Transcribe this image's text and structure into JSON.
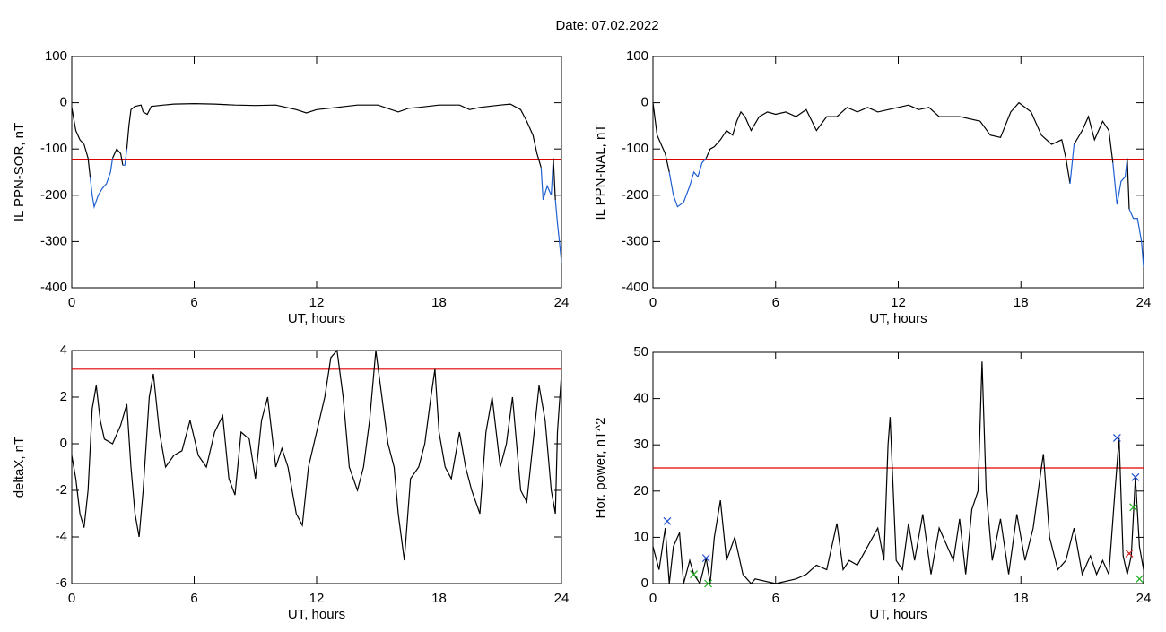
{
  "title": "Date:  07.02.2022",
  "chart_data": [
    {
      "type": "line",
      "ylabel": "IL PPN-SOR, nT",
      "xlabel": "UT, hours",
      "color": "#000000",
      "highlight_color": "#1f5fd0",
      "threshold": -122,
      "threshold_color": "#e00000",
      "xlim": [
        0,
        24
      ],
      "xticks": [
        0,
        6,
        12,
        18,
        24
      ],
      "ylim": [
        -400,
        100
      ],
      "yticks": [
        100,
        0,
        -100,
        -200,
        -300,
        -400
      ],
      "x": [
        0,
        0.2,
        0.4,
        0.6,
        0.8,
        0.9,
        1.0,
        1.1,
        1.3,
        1.5,
        1.7,
        1.9,
        2.0,
        2.2,
        2.4,
        2.5,
        2.6,
        2.7,
        2.8,
        2.9,
        3.1,
        3.4,
        3.5,
        3.7,
        3.9,
        4.5,
        5,
        6,
        7,
        8,
        9,
        10,
        11,
        11.5,
        12,
        13,
        14,
        15,
        16,
        16.5,
        17,
        18,
        19,
        19.5,
        20,
        21,
        21.5,
        22,
        22.3,
        22.6,
        22.8,
        23.0,
        23.1,
        23.3,
        23.5,
        23.6,
        23.7,
        23.8,
        23.9,
        24
      ],
      "values": [
        -10,
        -60,
        -80,
        -90,
        -120,
        -160,
        -200,
        -225,
        -200,
        -185,
        -175,
        -150,
        -120,
        -100,
        -110,
        -135,
        -135,
        -100,
        -50,
        -15,
        -8,
        -5,
        -20,
        -25,
        -8,
        -5,
        -3,
        -2,
        -3,
        -5,
        -6,
        -5,
        -15,
        -22,
        -15,
        -10,
        -5,
        -5,
        -20,
        -12,
        -10,
        -5,
        -5,
        -15,
        -10,
        -5,
        -3,
        -15,
        -40,
        -70,
        -110,
        -140,
        -210,
        -180,
        -200,
        -120,
        -210,
        -260,
        -300,
        -345
      ]
    },
    {
      "type": "line",
      "ylabel": "IL PPN-NAL, nT",
      "xlabel": "UT, hours",
      "color": "#000000",
      "highlight_color": "#1f5fd0",
      "threshold": -122,
      "threshold_color": "#e00000",
      "xlim": [
        0,
        24
      ],
      "xticks": [
        0,
        6,
        12,
        18,
        24
      ],
      "ylim": [
        -400,
        100
      ],
      "yticks": [
        100,
        0,
        -100,
        -200,
        -300,
        -400
      ],
      "x": [
        0,
        0.2,
        0.4,
        0.6,
        0.8,
        1.0,
        1.2,
        1.5,
        1.8,
        2.0,
        2.2,
        2.4,
        2.6,
        2.8,
        3.0,
        3.3,
        3.6,
        3.9,
        4.1,
        4.3,
        4.5,
        4.8,
        5.2,
        5.6,
        6,
        6.5,
        7,
        7.5,
        8,
        8.5,
        9,
        9.5,
        10,
        10.5,
        11,
        12,
        12.5,
        13,
        13.5,
        14,
        15,
        16,
        16.5,
        17,
        17.5,
        17.9,
        18.5,
        19,
        19.5,
        20,
        20.2,
        20.4,
        20.6,
        21,
        21.3,
        21.6,
        22,
        22.3,
        22.5,
        22.7,
        22.9,
        23.1,
        23.2,
        23.3,
        23.5,
        23.7,
        23.9,
        24
      ],
      "values": [
        0,
        -70,
        -90,
        -110,
        -150,
        -200,
        -225,
        -215,
        -180,
        -150,
        -160,
        -130,
        -120,
        -100,
        -95,
        -80,
        -60,
        -70,
        -40,
        -20,
        -30,
        -60,
        -30,
        -20,
        -25,
        -20,
        -30,
        -15,
        -60,
        -30,
        -30,
        -10,
        -20,
        -10,
        -20,
        -10,
        -5,
        -15,
        -10,
        -30,
        -30,
        -40,
        -70,
        -75,
        -20,
        0,
        -20,
        -70,
        -90,
        -80,
        -120,
        -175,
        -90,
        -60,
        -30,
        -80,
        -40,
        -60,
        -130,
        -220,
        -170,
        -160,
        -120,
        -230,
        -250,
        -250,
        -300,
        -355
      ]
    },
    {
      "type": "line",
      "ylabel": "deltaX, nT",
      "xlabel": "UT, hours",
      "color": "#000000",
      "threshold": 3.2,
      "threshold_color": "#e00000",
      "xlim": [
        0,
        24
      ],
      "xticks": [
        0,
        6,
        12,
        18,
        24
      ],
      "ylim": [
        -6,
        4
      ],
      "yticks": [
        4,
        2,
        0,
        -2,
        -4,
        -6
      ],
      "x": [
        0,
        0.2,
        0.4,
        0.6,
        0.8,
        1.0,
        1.2,
        1.4,
        1.6,
        2,
        2.4,
        2.7,
        2.9,
        3.1,
        3.3,
        3.5,
        3.8,
        4.0,
        4.3,
        4.6,
        5,
        5.4,
        5.8,
        6.2,
        6.6,
        7,
        7.4,
        7.7,
        8,
        8.3,
        8.7,
        9,
        9.3,
        9.6,
        10,
        10.3,
        10.6,
        11,
        11.3,
        11.6,
        12,
        12.4,
        12.7,
        13.0,
        13.3,
        13.6,
        14,
        14.3,
        14.6,
        14.9,
        15.2,
        15.5,
        15.8,
        16,
        16.3,
        16.6,
        17,
        17.3,
        17.6,
        17.8,
        18,
        18.3,
        18.6,
        19,
        19.3,
        19.6,
        20,
        20.3,
        20.6,
        21,
        21.3,
        21.6,
        22,
        22.3,
        22.6,
        22.9,
        23.2,
        23.5,
        23.7,
        23.8,
        24
      ],
      "values": [
        -0.5,
        -1.5,
        -3,
        -3.6,
        -2,
        1.5,
        2.5,
        1,
        0.2,
        0,
        0.8,
        1.7,
        -1,
        -3,
        -4,
        -2,
        2,
        3,
        0.5,
        -1,
        -0.5,
        -0.3,
        1,
        -0.5,
        -1,
        0.5,
        1.2,
        -1.5,
        -2.2,
        0.5,
        0.2,
        -1.5,
        1,
        2,
        -1,
        -0.2,
        -1,
        -3,
        -3.5,
        -1,
        0.5,
        2,
        3.7,
        4,
        2,
        -1,
        -2,
        -1,
        1,
        4,
        2,
        0,
        -1,
        -3,
        -5,
        -1.5,
        -1,
        0,
        2,
        3.2,
        0.5,
        -1,
        -1.5,
        0.5,
        -1,
        -2,
        -3,
        0.5,
        2,
        -1,
        0,
        2,
        -2,
        -2.5,
        0,
        2.5,
        1,
        -2,
        -3,
        0.5,
        3
      ]
    },
    {
      "type": "line",
      "ylabel": "Hor. power, nT^2",
      "xlabel": "UT, hours",
      "color": "#000000",
      "threshold": 25,
      "threshold_color": "#e00000",
      "xlim": [
        0,
        24
      ],
      "xticks": [
        0,
        6,
        12,
        18,
        24
      ],
      "ylim": [
        0,
        50
      ],
      "yticks": [
        0,
        10,
        20,
        30,
        40,
        50
      ],
      "x": [
        0,
        0.3,
        0.6,
        0.8,
        1.0,
        1.3,
        1.5,
        1.8,
        2.0,
        2.3,
        2.6,
        2.8,
        3.0,
        3.3,
        3.6,
        4.0,
        4.4,
        4.8,
        5,
        6,
        7,
        7.5,
        8,
        8.5,
        9,
        9.3,
        9.6,
        10,
        10.5,
        11,
        11.3,
        11.5,
        11.6,
        11.9,
        12.2,
        12.5,
        12.8,
        13.2,
        13.6,
        14,
        14.4,
        14.7,
        15,
        15.3,
        15.6,
        15.9,
        16.1,
        16.3,
        16.6,
        17,
        17.4,
        17.8,
        18.2,
        18.6,
        19,
        19.1,
        19.4,
        19.8,
        20.2,
        20.6,
        21,
        21.4,
        21.7,
        22,
        22.3,
        22.6,
        22.8,
        23.0,
        23.2,
        23.4,
        23.6,
        23.8,
        24
      ],
      "values": [
        8,
        3,
        12,
        0,
        8,
        11,
        0,
        5,
        2,
        0,
        5.5,
        0,
        10,
        18,
        5,
        10,
        2,
        0,
        1,
        0,
        1,
        2,
        4,
        3,
        13,
        3,
        5,
        4,
        8,
        12,
        5,
        30,
        36,
        5,
        3,
        13,
        5,
        15,
        2,
        12,
        8,
        5,
        14,
        2,
        16,
        20,
        48,
        20,
        5,
        14,
        2,
        15,
        5,
        12,
        25,
        28,
        10,
        3,
        5,
        12,
        2,
        6,
        2,
        5,
        2,
        20,
        31.5,
        6,
        2,
        6,
        23,
        8,
        3
      ],
      "markers": [
        {
          "color": "#2050d0",
          "x": [
            0.7,
            2.6,
            22.7,
            23.6
          ],
          "y": [
            13.5,
            5.5,
            31.5,
            23
          ]
        },
        {
          "color": "#20b020",
          "x": [
            2.0,
            2.7,
            23.5,
            23.8
          ],
          "y": [
            2,
            0,
            16.5,
            1
          ]
        },
        {
          "color": "#d02020",
          "x": [
            23.3
          ],
          "y": [
            6.5
          ]
        }
      ]
    }
  ]
}
